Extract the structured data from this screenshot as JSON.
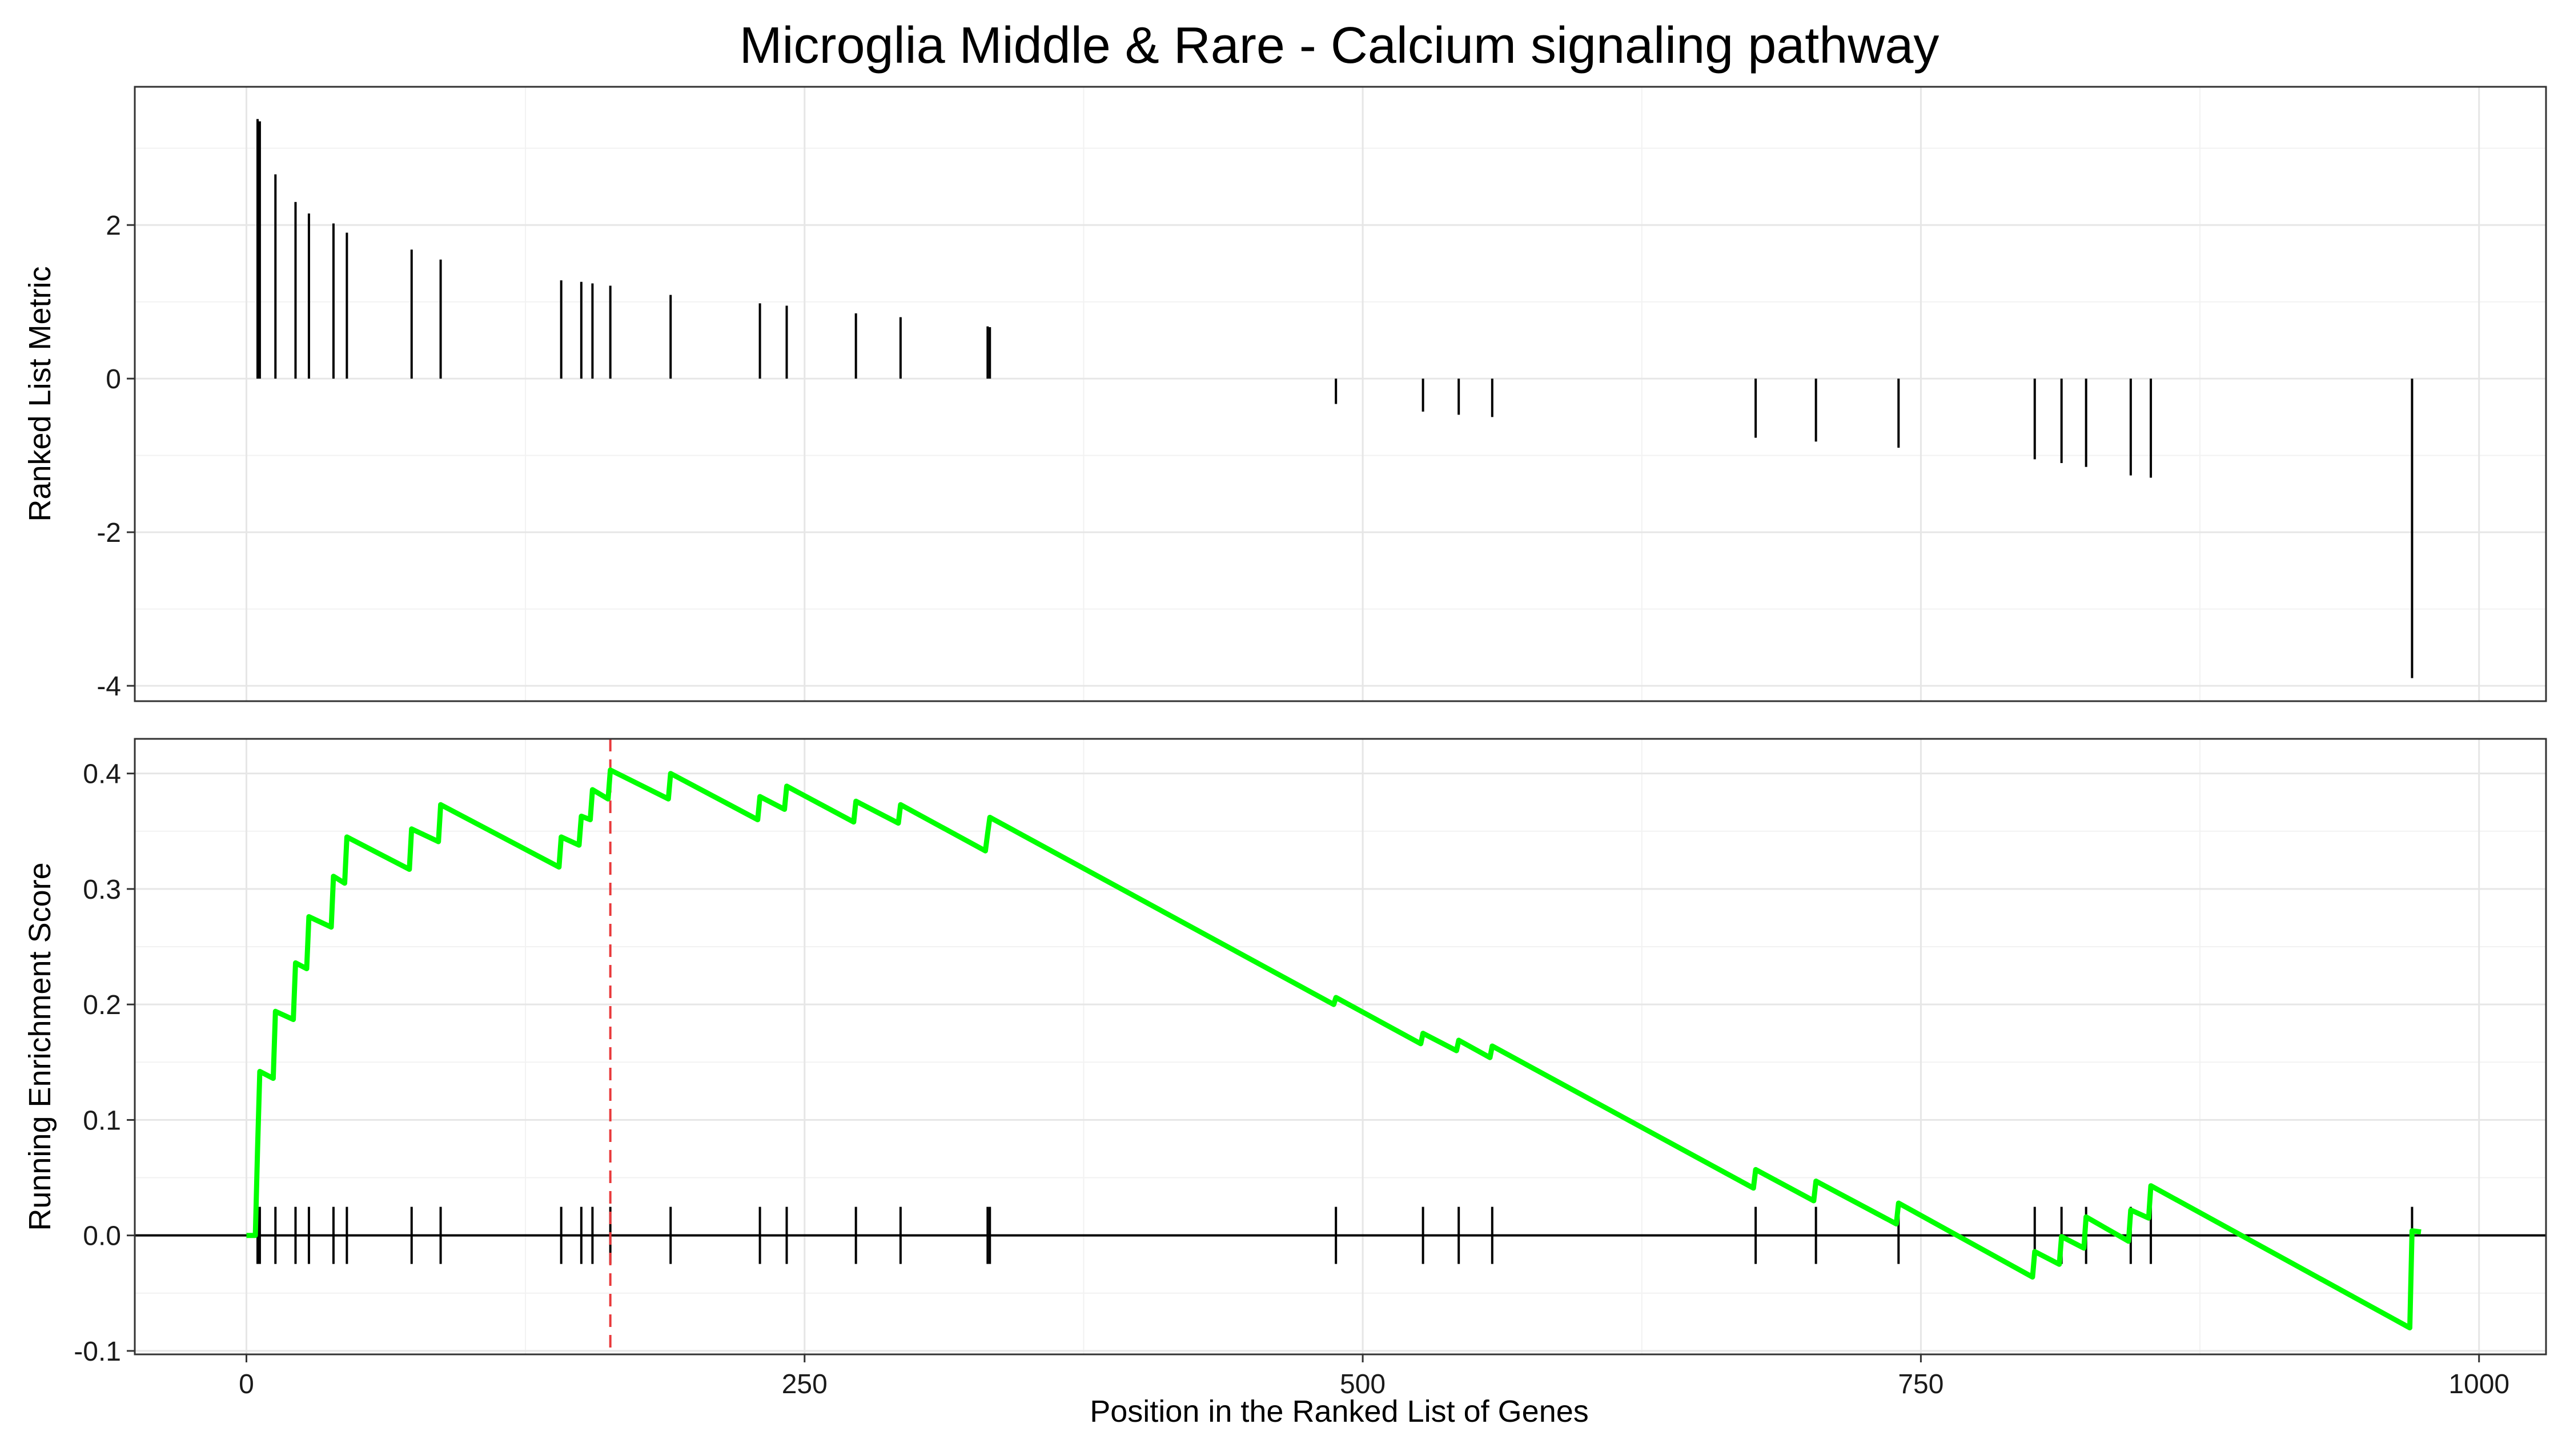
{
  "chart_data": [
    {
      "type": "bar",
      "title": "Microglia Middle & Rare - Calcium signaling pathway",
      "ylabel": "Ranked List Metric",
      "xlim": [
        -50,
        1030
      ],
      "ylim": [
        -4.2,
        3.8
      ],
      "y_ticks": [
        "-4",
        "-2",
        "0",
        "2"
      ],
      "y_tick_values": [
        -4,
        -2,
        0,
        2
      ],
      "grid": true,
      "bar_color": "#000000",
      "hits": [
        {
          "x": 5,
          "value": 3.38
        },
        {
          "x": 6,
          "value": 3.35
        },
        {
          "x": 13,
          "value": 2.66
        },
        {
          "x": 22,
          "value": 2.3
        },
        {
          "x": 28,
          "value": 2.15
        },
        {
          "x": 39,
          "value": 2.02
        },
        {
          "x": 45,
          "value": 1.9
        },
        {
          "x": 74,
          "value": 1.68
        },
        {
          "x": 87,
          "value": 1.55
        },
        {
          "x": 141,
          "value": 1.28
        },
        {
          "x": 150,
          "value": 1.26
        },
        {
          "x": 155,
          "value": 1.24
        },
        {
          "x": 163,
          "value": 1.21
        },
        {
          "x": 190,
          "value": 1.09
        },
        {
          "x": 230,
          "value": 0.98
        },
        {
          "x": 242,
          "value": 0.95
        },
        {
          "x": 273,
          "value": 0.85
        },
        {
          "x": 293,
          "value": 0.8
        },
        {
          "x": 332,
          "value": 0.68
        },
        {
          "x": 333,
          "value": 0.67
        },
        {
          "x": 488,
          "value": -0.33
        },
        {
          "x": 527,
          "value": -0.43
        },
        {
          "x": 543,
          "value": -0.47
        },
        {
          "x": 558,
          "value": -0.5
        },
        {
          "x": 676,
          "value": -0.77
        },
        {
          "x": 703,
          "value": -0.82
        },
        {
          "x": 740,
          "value": -0.9
        },
        {
          "x": 801,
          "value": -1.05
        },
        {
          "x": 813,
          "value": -1.1
        },
        {
          "x": 824,
          "value": -1.15
        },
        {
          "x": 844,
          "value": -1.26
        },
        {
          "x": 853,
          "value": -1.29
        },
        {
          "x": 970,
          "value": -3.9
        }
      ]
    },
    {
      "type": "line",
      "xlabel": "Position in the Ranked List of Genes",
      "ylabel": "Running Enrichment Score",
      "xlim": [
        -50,
        1030
      ],
      "ylim": [
        -0.103,
        0.43
      ],
      "x_ticks": [
        "0",
        "250",
        "500",
        "750",
        "1000"
      ],
      "x_tick_values": [
        0,
        250,
        500,
        750,
        1000
      ],
      "y_ticks": [
        "-0.1",
        "0.0",
        "0.1",
        "0.2",
        "0.3",
        "0.4"
      ],
      "y_tick_values": [
        -0.1,
        0,
        0.1,
        0.2,
        0.3,
        0.4
      ],
      "grid": true,
      "line_color": "#00ff00",
      "zero_line_color": "#000000",
      "peak_marker": {
        "x": 163,
        "color": "#e8393b"
      },
      "enrichment_curve": [
        {
          "x": 0,
          "y": 0.0
        },
        {
          "x": 4,
          "y": 0.0
        },
        {
          "x": 5,
          "y": 0.075
        },
        {
          "x": 6,
          "y": 0.142
        },
        {
          "x": 12,
          "y": 0.136
        },
        {
          "x": 13,
          "y": 0.194
        },
        {
          "x": 21,
          "y": 0.187
        },
        {
          "x": 22,
          "y": 0.236
        },
        {
          "x": 27,
          "y": 0.231
        },
        {
          "x": 28,
          "y": 0.276
        },
        {
          "x": 38,
          "y": 0.267
        },
        {
          "x": 39,
          "y": 0.311
        },
        {
          "x": 44,
          "y": 0.305
        },
        {
          "x": 45,
          "y": 0.345
        },
        {
          "x": 73,
          "y": 0.317
        },
        {
          "x": 74,
          "y": 0.352
        },
        {
          "x": 86,
          "y": 0.341
        },
        {
          "x": 87,
          "y": 0.373
        },
        {
          "x": 140,
          "y": 0.319
        },
        {
          "x": 141,
          "y": 0.345
        },
        {
          "x": 149,
          "y": 0.338
        },
        {
          "x": 150,
          "y": 0.363
        },
        {
          "x": 154,
          "y": 0.36
        },
        {
          "x": 155,
          "y": 0.386
        },
        {
          "x": 162,
          "y": 0.378
        },
        {
          "x": 163,
          "y": 0.403
        },
        {
          "x": 189,
          "y": 0.378
        },
        {
          "x": 190,
          "y": 0.4
        },
        {
          "x": 229,
          "y": 0.36
        },
        {
          "x": 230,
          "y": 0.38
        },
        {
          "x": 241,
          "y": 0.369
        },
        {
          "x": 242,
          "y": 0.389
        },
        {
          "x": 272,
          "y": 0.358
        },
        {
          "x": 273,
          "y": 0.376
        },
        {
          "x": 292,
          "y": 0.357
        },
        {
          "x": 293,
          "y": 0.373
        },
        {
          "x": 331,
          "y": 0.333
        },
        {
          "x": 332,
          "y": 0.348
        },
        {
          "x": 333,
          "y": 0.362
        },
        {
          "x": 487,
          "y": 0.2
        },
        {
          "x": 488,
          "y": 0.206
        },
        {
          "x": 526,
          "y": 0.166
        },
        {
          "x": 527,
          "y": 0.175
        },
        {
          "x": 542,
          "y": 0.16
        },
        {
          "x": 543,
          "y": 0.169
        },
        {
          "x": 557,
          "y": 0.154
        },
        {
          "x": 558,
          "y": 0.164
        },
        {
          "x": 675,
          "y": 0.041
        },
        {
          "x": 676,
          "y": 0.057
        },
        {
          "x": 702,
          "y": 0.03
        },
        {
          "x": 703,
          "y": 0.047
        },
        {
          "x": 739,
          "y": 0.01
        },
        {
          "x": 740,
          "y": 0.028
        },
        {
          "x": 800,
          "y": -0.036
        },
        {
          "x": 801,
          "y": -0.014
        },
        {
          "x": 812,
          "y": -0.025
        },
        {
          "x": 813,
          "y": -0.001
        },
        {
          "x": 823,
          "y": -0.011
        },
        {
          "x": 824,
          "y": 0.016
        },
        {
          "x": 843,
          "y": -0.005
        },
        {
          "x": 844,
          "y": 0.022
        },
        {
          "x": 852,
          "y": 0.015
        },
        {
          "x": 853,
          "y": 0.043
        },
        {
          "x": 969,
          "y": -0.08
        },
        {
          "x": 970,
          "y": 0.004
        },
        {
          "x": 974,
          "y": 0.003
        }
      ],
      "hit_positions": [
        5,
        6,
        13,
        22,
        28,
        39,
        45,
        74,
        87,
        141,
        150,
        155,
        163,
        190,
        230,
        242,
        273,
        293,
        332,
        333,
        488,
        527,
        543,
        558,
        676,
        703,
        740,
        801,
        813,
        824,
        844,
        853,
        970
      ]
    }
  ]
}
